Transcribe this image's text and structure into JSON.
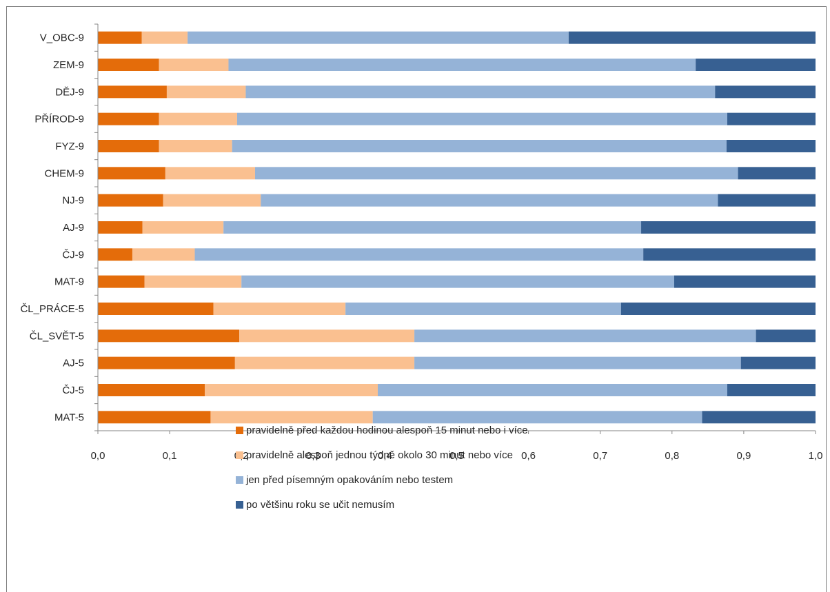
{
  "chart_data": {
    "type": "bar",
    "orientation": "horizontal",
    "stacked": true,
    "categories": [
      "MAT-5",
      "ČJ-5",
      "AJ-5",
      "ČL_SVĚT-5",
      "ČL_PRÁCE-5",
      "MAT-9",
      "ČJ-9",
      "AJ-9",
      "NJ-9",
      "CHEM-9",
      "FYZ-9",
      "PŘÍROD-9",
      "DĚJ-9",
      "ZEM-9",
      "V_OBC-9"
    ],
    "series": [
      {
        "name": "pravidelně před každou hodinou alespoň 15 minut nebo i více",
        "color": "#e46c0a",
        "values": [
          0.157,
          0.149,
          0.191,
          0.197,
          0.161,
          0.065,
          0.048,
          0.062,
          0.091,
          0.094,
          0.085,
          0.085,
          0.096,
          0.085,
          0.061
        ]
      },
      {
        "name": "pravidelně alespoň jednou týdně okolo 30 minut nebo více",
        "color": "#fac090",
        "values": [
          0.226,
          0.241,
          0.25,
          0.244,
          0.184,
          0.135,
          0.087,
          0.113,
          0.136,
          0.125,
          0.102,
          0.109,
          0.11,
          0.097,
          0.064
        ]
      },
      {
        "name": "jen před písemným opakováním nebo testem",
        "color": "#95b3d7",
        "values": [
          0.459,
          0.487,
          0.455,
          0.476,
          0.384,
          0.603,
          0.625,
          0.582,
          0.637,
          0.673,
          0.689,
          0.683,
          0.654,
          0.651,
          0.531
        ]
      },
      {
        "name": "po většinu roku se učit nemusím",
        "color": "#376092",
        "values": [
          0.158,
          0.123,
          0.104,
          0.083,
          0.271,
          0.197,
          0.24,
          0.243,
          0.136,
          0.108,
          0.124,
          0.123,
          0.14,
          0.167,
          0.344
        ]
      }
    ],
    "xlim": [
      0,
      1
    ],
    "xticks": [
      "0,0",
      "0,1",
      "0,2",
      "0,3",
      "0,4",
      "0,5",
      "0,6",
      "0,7",
      "0,8",
      "0,9",
      "1,0"
    ],
    "grid": false,
    "legend_position": "bottom"
  }
}
